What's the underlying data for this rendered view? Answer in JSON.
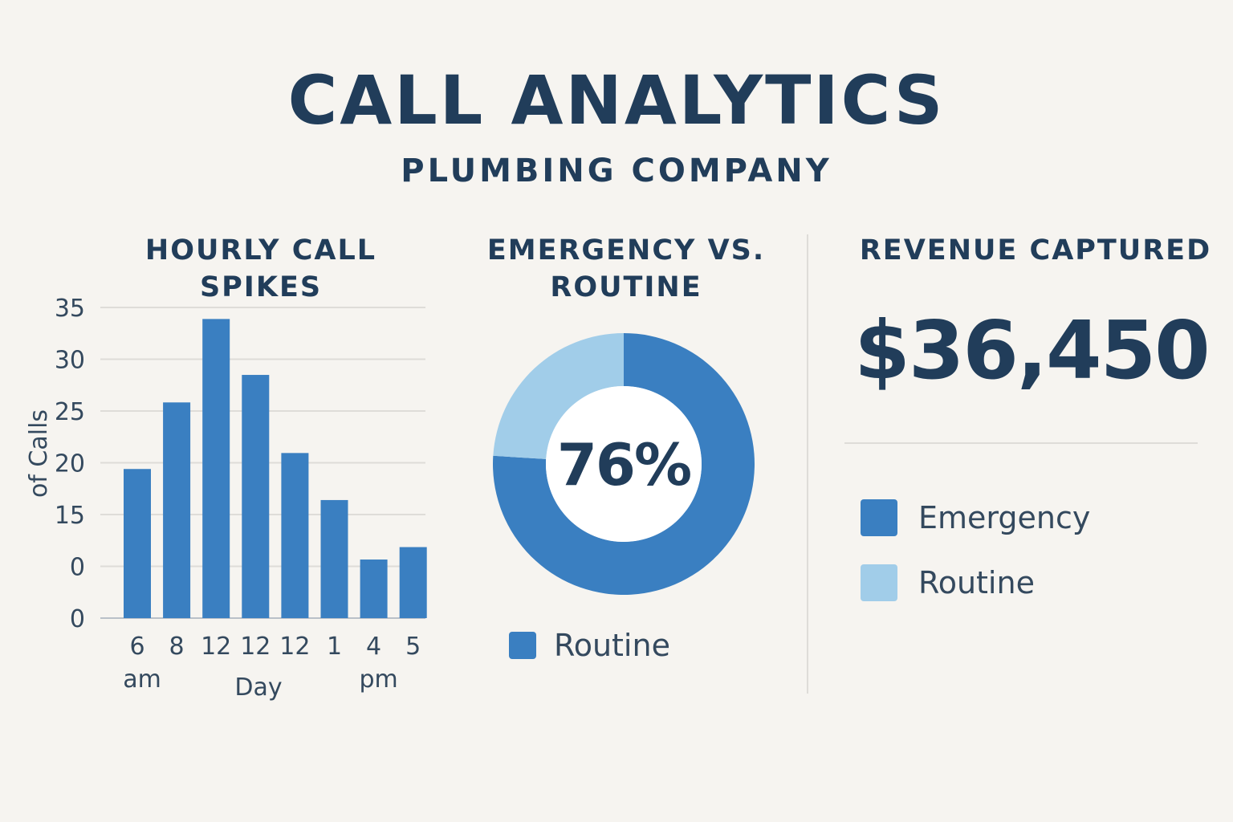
{
  "header": {
    "title": "CALL ANALYTICS",
    "subtitle": "PLUMBING COMPANY"
  },
  "colors": {
    "emergency": "#3a7fc1",
    "routine": "#a1cde9",
    "text": "#213d5a",
    "grid": "#dedcd8"
  },
  "bar_panel": {
    "title": "HOURLY CALL SPIKES"
  },
  "donut_panel": {
    "title_line1": "EMERGENCY VS.",
    "title_line2": "ROUTINE",
    "center_label": "76%",
    "legend_label": "Routine"
  },
  "revenue_panel": {
    "title": "REVENUE CAPTURED",
    "value": "$36,450",
    "legend": [
      {
        "label": "Emergency",
        "color": "#3a7fc1"
      },
      {
        "label": "Routine",
        "color": "#a1cde9"
      }
    ]
  },
  "chart_data": [
    {
      "type": "bar",
      "title": "HOURLY CALL SPIKES",
      "ylabel": "of Calls",
      "xlabel": "Day",
      "y_tick_labels": [
        "35",
        "30",
        "25",
        "20",
        "15",
        "0",
        "0"
      ],
      "categories": [
        "6",
        "8",
        "12",
        "12",
        "12",
        "1",
        "4",
        "5"
      ],
      "category_sublabels": [
        {
          "text": "am",
          "under_index": 0
        },
        {
          "text": "pm",
          "under_index": 6
        }
      ],
      "values": [
        16.8,
        24.3,
        33.7,
        27.4,
        18.6,
        13.3,
        6.6,
        8.0
      ],
      "ylim": [
        0,
        35
      ],
      "grid": true
    },
    {
      "type": "pie",
      "title": "EMERGENCY VS. ROUTINE",
      "labels": [
        "Emergency",
        "Routine"
      ],
      "values": [
        76,
        24
      ],
      "center_label": "76%"
    }
  ]
}
